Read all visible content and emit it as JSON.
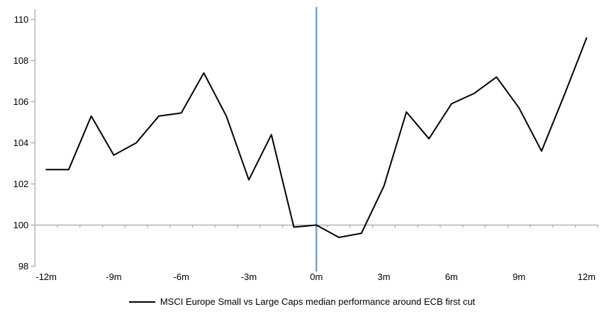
{
  "chart_data": {
    "type": "line",
    "x": [
      -12,
      -11,
      -10,
      -9,
      -8,
      -7,
      -6,
      -5,
      -4,
      -3,
      -2,
      -1,
      0,
      1,
      2,
      3,
      4,
      5,
      6,
      7,
      8,
      9,
      10,
      11,
      12
    ],
    "series": [
      {
        "name": "MSCI Europe Small vs Large Caps median performance around ECB first cut",
        "color": "#000000",
        "values": [
          102.7,
          102.7,
          105.3,
          103.4,
          104.0,
          105.3,
          105.45,
          107.4,
          105.3,
          102.2,
          104.4,
          99.9,
          100.0,
          99.4,
          99.6,
          101.9,
          105.5,
          104.2,
          105.9,
          106.4,
          107.2,
          105.7,
          103.6,
          106.3,
          109.1
        ]
      }
    ],
    "title": "",
    "xlabel": "",
    "ylabel": "",
    "ylim": [
      98,
      110
    ],
    "y_ticks": [
      98,
      100,
      102,
      104,
      106,
      108,
      110
    ],
    "x_tick_labels": [
      "-12m",
      "-9m",
      "-6m",
      "-3m",
      "0m",
      "3m",
      "6m",
      "9m",
      "12m"
    ],
    "x_tick_months": [
      -12,
      -9,
      -6,
      -3,
      0,
      3,
      6,
      9,
      12
    ],
    "baseline_value": 100,
    "event_line_month": 0,
    "grid": "horizontal line at 100 only",
    "legend_position": "bottom-center",
    "colors": {
      "series_line": "#000000",
      "event_line": "#75a3cb",
      "axis_line": "#a6a6a6",
      "text": "#000000",
      "background": "#ffffff"
    }
  },
  "legend": {
    "label": "MSCI Europe Small vs Large Caps median performance around ECB first cut"
  }
}
